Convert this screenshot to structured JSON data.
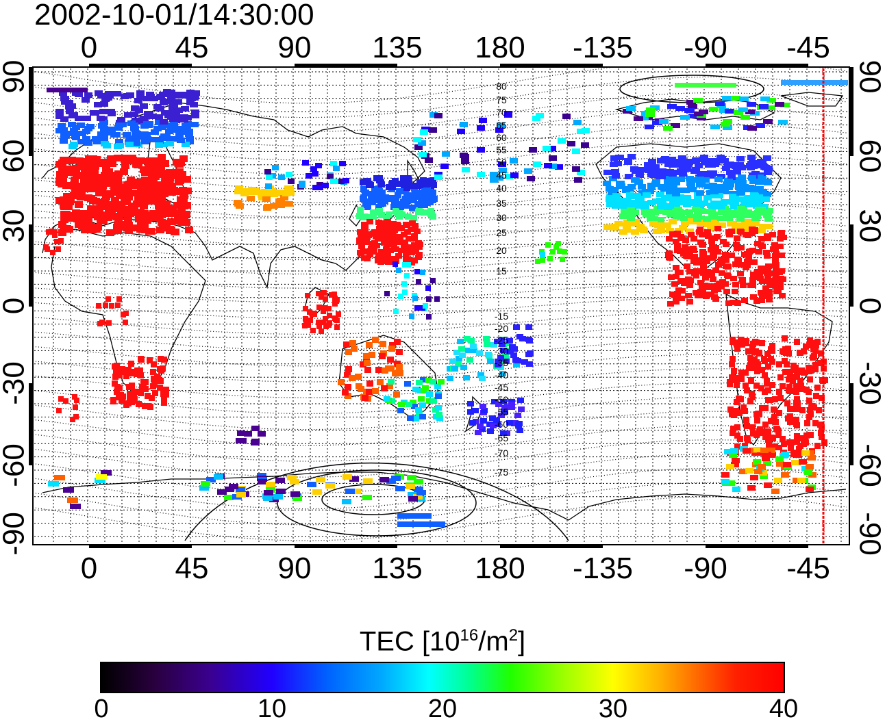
{
  "title": "2002-10-01/14:30:00",
  "map": {
    "top_lon_labels": [
      "0",
      "45",
      "90",
      "135",
      "180",
      "-135",
      "-90",
      "-45"
    ],
    "bottom_lon_labels": [
      "0",
      "45",
      "90",
      "135",
      "180",
      "-135",
      "-90",
      "-45"
    ],
    "left_lat_labels": [
      "90",
      "60",
      "30",
      "0",
      "-30",
      "-60",
      "-90"
    ],
    "right_lat_labels": [
      "90",
      "60",
      "30",
      "0",
      "-30",
      "-60",
      "-90"
    ],
    "contour_labels_north": [
      "80",
      "75",
      "70",
      "65",
      "60",
      "55",
      "50",
      "45",
      "40",
      "35",
      "30",
      "25",
      "20",
      "15"
    ],
    "contour_labels_south": [
      "-15",
      "-20",
      "-25",
      "-30",
      "-35",
      "-40",
      "-45",
      "-50",
      "-55",
      "-60",
      "-65",
      "-70",
      "-75"
    ],
    "grid": true,
    "terminator_line_color": "#ff0000",
    "coastline_color": "#000000"
  },
  "colorbar": {
    "title": "TEC  [10",
    "title_sup": "16",
    "title_mid": "/m",
    "title_sup2": "2",
    "title_end": "]",
    "min": 0,
    "max": 40,
    "tick_labels": [
      "0",
      "10",
      "20",
      "30",
      "40"
    ],
    "colors": [
      "#000000",
      "#3a0090",
      "#2000ff",
      "#00a8ff",
      "#00ffff",
      "#20ff00",
      "#ffff00",
      "#ff6000",
      "#ff0000"
    ]
  }
}
